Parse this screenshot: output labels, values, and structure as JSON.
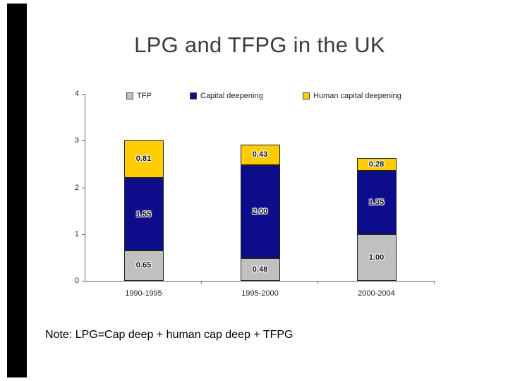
{
  "slide": {
    "title": "LPG and TFPG in the UK",
    "note": "Note: LPG=Cap deep + human cap deep + TFPG"
  },
  "chart_data": {
    "type": "bar",
    "stacked": true,
    "title": "LPG and TFPG in the UK",
    "xlabel": "",
    "ylabel": "",
    "categories": [
      "1990-1995",
      "1995-2000",
      "2000-2004"
    ],
    "series": [
      {
        "name": "TFP",
        "color": "#C0C0C0",
        "values": [
          0.65,
          0.48,
          1.0
        ],
        "labels": [
          "0.65",
          "0.48",
          "1.00"
        ]
      },
      {
        "name": "Capital deepening",
        "color": "#0D0D8C",
        "values": [
          1.55,
          2.0,
          1.35
        ],
        "labels": [
          "1.55",
          "2.00",
          "1.35"
        ]
      },
      {
        "name": "Human capital deepening",
        "color": "#FFCC00",
        "values": [
          0.81,
          0.43,
          0.28
        ],
        "labels": [
          "0.81",
          "0.43",
          "0.28"
        ]
      }
    ],
    "totals": [
      3.01,
      2.91,
      2.63
    ],
    "ylim": [
      0,
      4
    ],
    "yticks": [
      0,
      1,
      2,
      3,
      4
    ],
    "legend_position": "top",
    "grid": false
  }
}
